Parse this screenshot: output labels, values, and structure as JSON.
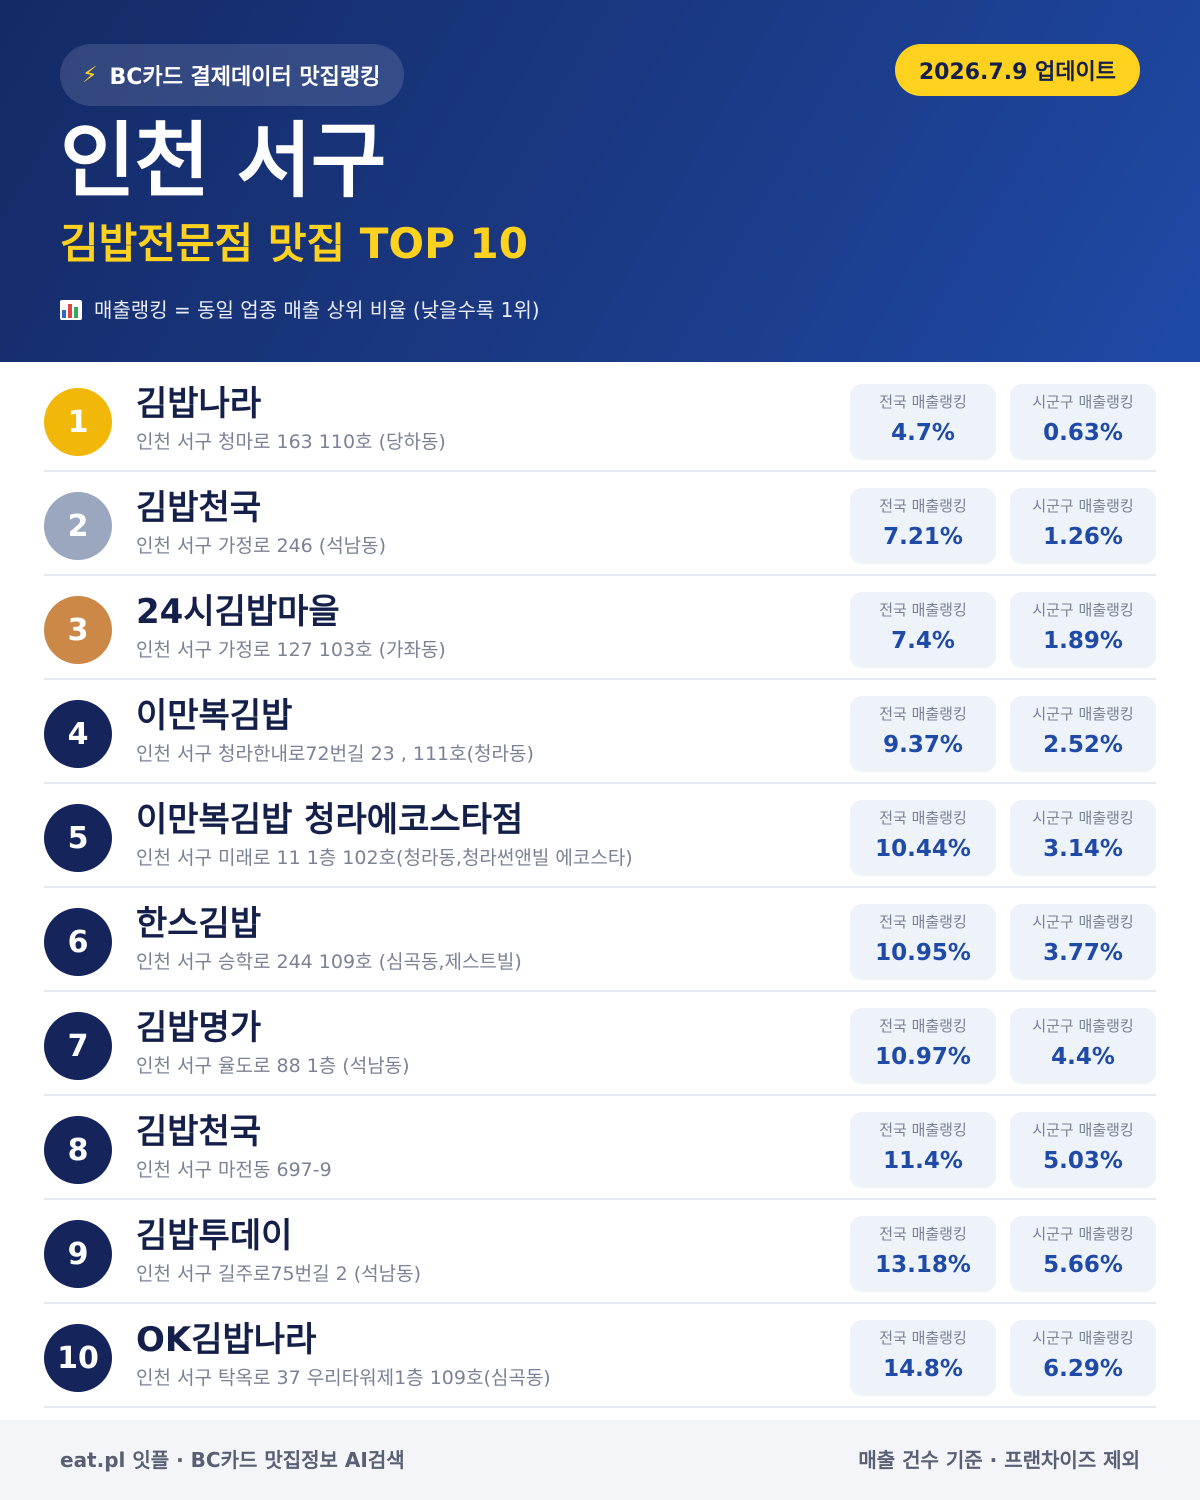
{
  "header": {
    "tag": "BC카드 결제데이터 맛집랭킹",
    "update": "2026.7.9 업데이트",
    "title": "인천 서구",
    "subtitle": "김밥전문점 맛집 TOP 10",
    "note": "매출랭킹 = 동일 업종 매출 상위 비율 (낮을수록 1위)"
  },
  "colors": {
    "gold": "#f1b809",
    "silver": "#9aa7bf",
    "bronze": "#cc8847",
    "navy": "#15245a",
    "accent": "#ffd21f"
  },
  "labels": {
    "national": "전국 매출랭킹",
    "local": "시군구 매출랭킹"
  },
  "items": [
    {
      "rank": "1",
      "name": "김밥나라",
      "address": "인천 서구 청마로 163 110호 (당하동)",
      "national": "4.7%",
      "local": "0.63%"
    },
    {
      "rank": "2",
      "name": "김밥천국",
      "address": "인천 서구 가정로 246 (석남동)",
      "national": "7.21%",
      "local": "1.26%"
    },
    {
      "rank": "3",
      "name": "24시김밥마을",
      "address": "인천 서구 가정로 127 103호 (가좌동)",
      "national": "7.4%",
      "local": "1.89%"
    },
    {
      "rank": "4",
      "name": "이만복김밥",
      "address": "인천 서구 청라한내로72번길 23 , 111호(청라동)",
      "national": "9.37%",
      "local": "2.52%"
    },
    {
      "rank": "5",
      "name": "이만복김밥 청라에코스타점",
      "address": "인천 서구 미래로 11 1층 102호(청라동,청라썬앤빌 에코스타)",
      "national": "10.44%",
      "local": "3.14%"
    },
    {
      "rank": "6",
      "name": "한스김밥",
      "address": "인천 서구 승학로 244 109호 (심곡동,제스트빌)",
      "national": "10.95%",
      "local": "3.77%"
    },
    {
      "rank": "7",
      "name": "김밥명가",
      "address": "인천 서구 율도로 88 1층 (석남동)",
      "national": "10.97%",
      "local": "4.4%"
    },
    {
      "rank": "8",
      "name": "김밥천국",
      "address": "인천 서구 마전동 697-9",
      "national": "11.4%",
      "local": "5.03%"
    },
    {
      "rank": "9",
      "name": "김밥투데이",
      "address": "인천 서구 길주로75번길 2 (석남동)",
      "national": "13.18%",
      "local": "5.66%"
    },
    {
      "rank": "10",
      "name": "OK김밥나라",
      "address": "인천 서구 탁옥로 37 우리타워제1층 109호(심곡동)",
      "national": "14.8%",
      "local": "6.29%"
    }
  ],
  "footer": {
    "left": "eat.pl 잇플 · BC카드 맛집정보 AI검색",
    "right": "매출 건수 기준 · 프랜차이즈 제외"
  }
}
